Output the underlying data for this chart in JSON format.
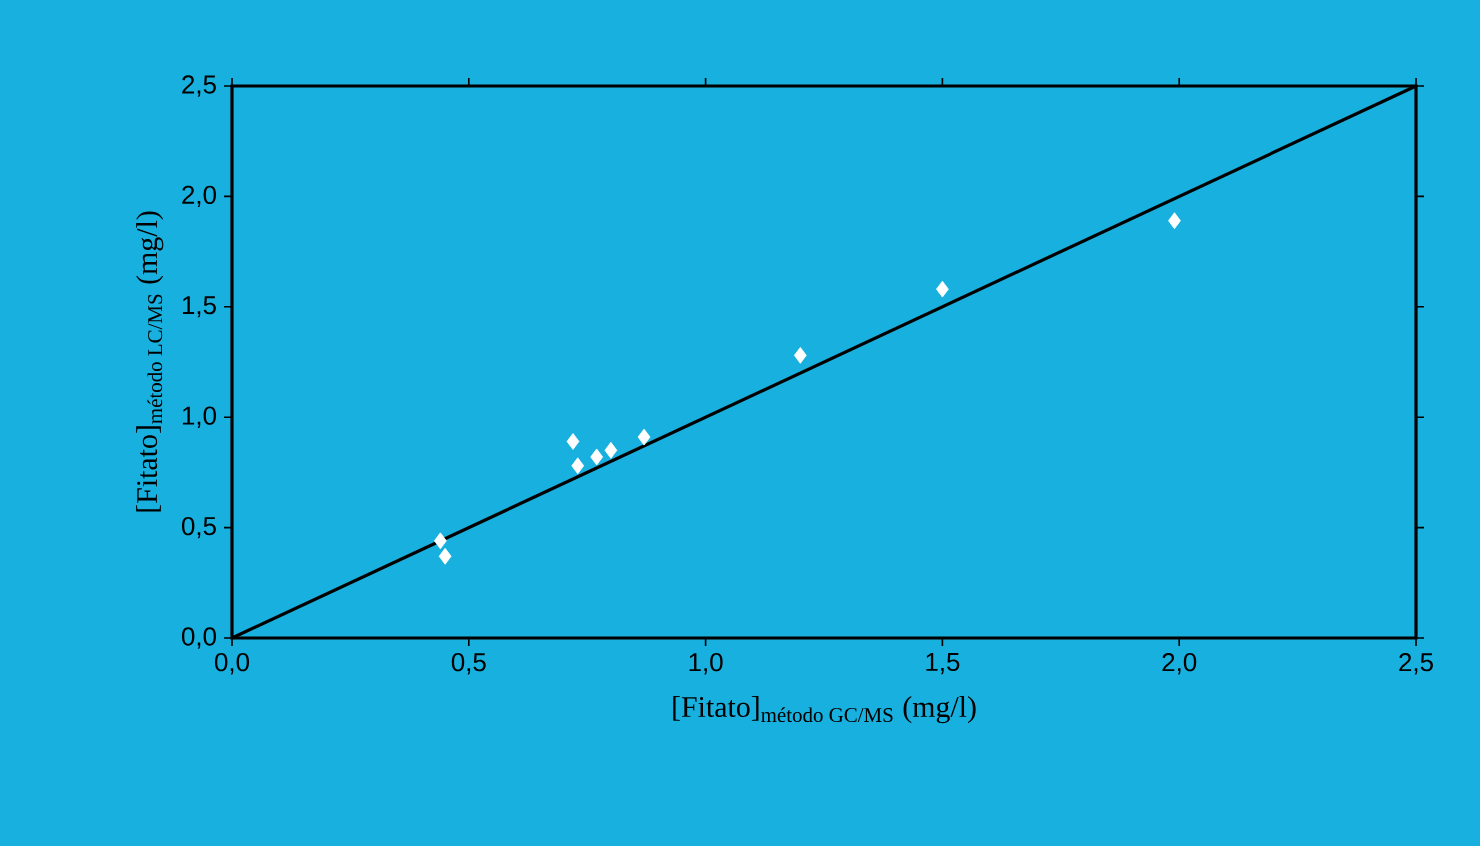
{
  "chart_data": {
    "type": "scatter",
    "xlabel": "\\text{[Fitato]}_{\\text{método GC/MS}}\\text{ (mg/l)}",
    "ylabel": "\\text{[Fitato]}_{\\text{método LC/MS}}\\text{ (mg/l)}",
    "xlim": [
      0,
      2.5
    ],
    "ylim": [
      0,
      2.5
    ],
    "xticks": [
      {
        "value": 0,
        "label": "0,0"
      },
      {
        "value": 0.5,
        "label": "0,5"
      },
      {
        "value": 1,
        "label": "1,0"
      },
      {
        "value": 1.5,
        "label": "1,5"
      },
      {
        "value": 2,
        "label": "2,0"
      },
      {
        "value": 2.5,
        "label": "2,5"
      }
    ],
    "yticks": [
      {
        "value": 0,
        "label": "0,0"
      },
      {
        "value": 0.5,
        "label": "0,5"
      },
      {
        "value": 1,
        "label": "1,0"
      },
      {
        "value": 1.5,
        "label": "1,5"
      },
      {
        "value": 2,
        "label": "2,0"
      },
      {
        "value": 2.5,
        "label": "2,5"
      }
    ],
    "grid": false,
    "series": [
      {
        "marker": "diamond",
        "color": "#ffffff",
        "x": [
          0.44,
          0.45,
          0.72,
          0.73,
          0.77,
          0.8,
          0.87,
          1.2,
          1.5,
          1.99
        ],
        "values": [
          0.44,
          0.37,
          0.89,
          0.78,
          0.82,
          0.85,
          0.91,
          1.28,
          1.58,
          1.89
        ]
      },
      {
        "type": "line",
        "marker": "none",
        "line_style": "solid",
        "color": "#000000",
        "x": [
          0,
          2.5
        ],
        "values": [
          0,
          2.5
        ]
      }
    ]
  }
}
